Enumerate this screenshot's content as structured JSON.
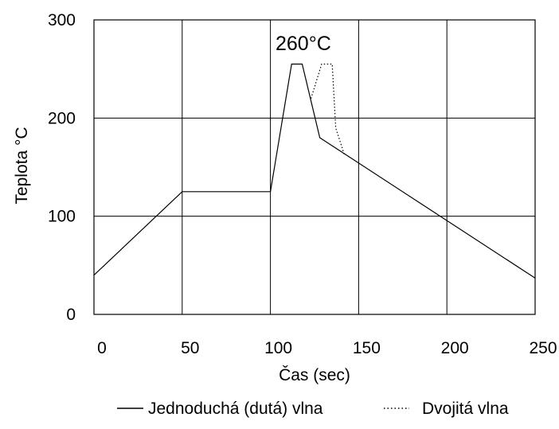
{
  "chart_data": {
    "type": "line",
    "title": "",
    "xlabel": "Čas (sec)",
    "ylabel": "Teplota °C",
    "xlim": [
      0,
      250
    ],
    "ylim": [
      0,
      300
    ],
    "xticks": [
      0,
      50,
      100,
      150,
      200,
      250
    ],
    "yticks": [
      0,
      100,
      200,
      300
    ],
    "xtick_labels": [
      "0",
      "50",
      "100",
      "150",
      "200",
      "250"
    ],
    "ytick_labels": [
      "0",
      "100",
      "200",
      "300"
    ],
    "grid": true,
    "legend_position": "bottom",
    "annotation": "260°C",
    "series": [
      {
        "name": "Jednoduchá (dutá) vlna",
        "style": "solid",
        "color": "#000000",
        "x": [
          0,
          50,
          100,
          112,
          118,
          128,
          250
        ],
        "y": [
          40,
          125,
          125,
          255,
          255,
          180,
          37
        ]
      },
      {
        "name": "Dvojitá vlna",
        "style": "dotted",
        "color": "#000000",
        "x": [
          123,
          129,
          135,
          137,
          142
        ],
        "y": [
          220,
          255,
          255,
          190,
          162
        ]
      }
    ]
  }
}
